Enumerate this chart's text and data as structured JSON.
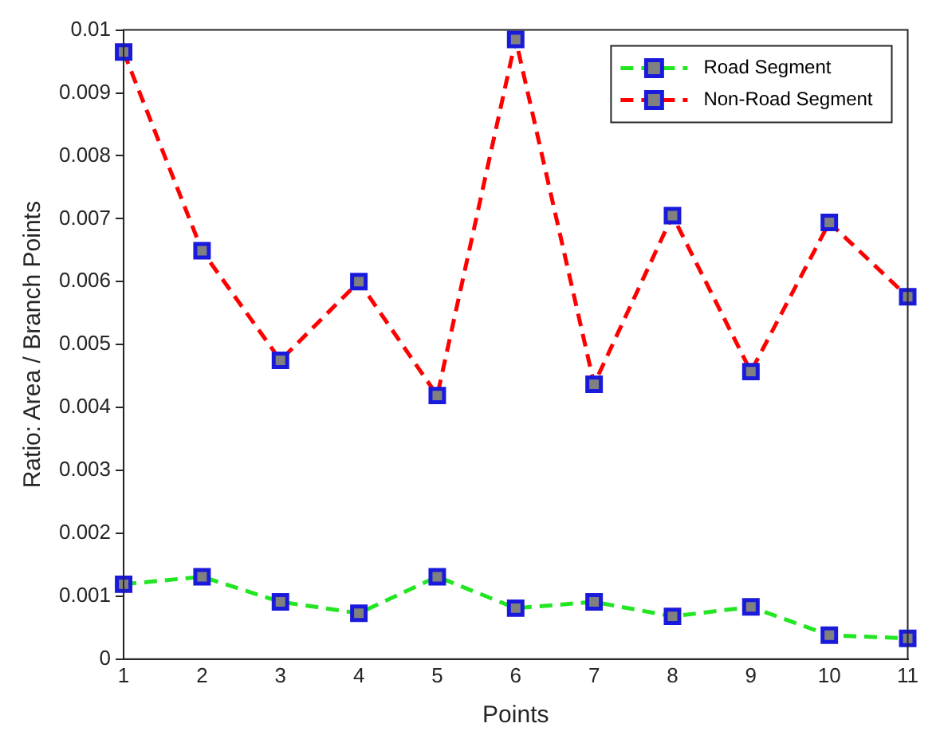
{
  "chart_data": {
    "type": "line",
    "xlabel": "Points",
    "ylabel": "Ratio: Area / Branch Points",
    "categories": [
      "1",
      "2",
      "3",
      "4",
      "5",
      "6",
      "7",
      "8",
      "9",
      "10",
      "11"
    ],
    "series": [
      {
        "name": "Road Segment",
        "color": "#22e622",
        "values": [
          0.00119,
          0.00131,
          0.00091,
          0.00073,
          0.00131,
          0.00081,
          0.00091,
          0.00068,
          0.00083,
          0.00038,
          0.00033
        ]
      },
      {
        "name": "Non-Road Segment",
        "color": "#ff0000",
        "values": [
          0.00965,
          0.00649,
          0.00475,
          0.006,
          0.00419,
          0.00985,
          0.00437,
          0.00705,
          0.00457,
          0.00694,
          0.00576
        ]
      }
    ],
    "ylim": [
      0,
      0.01
    ],
    "yticks": [
      0,
      0.001,
      0.002,
      0.003,
      0.004,
      0.005,
      0.006,
      0.007,
      0.008,
      0.009,
      0.01
    ],
    "grid": false,
    "legend": "top right",
    "marker": "square",
    "line_style": "dashed"
  }
}
